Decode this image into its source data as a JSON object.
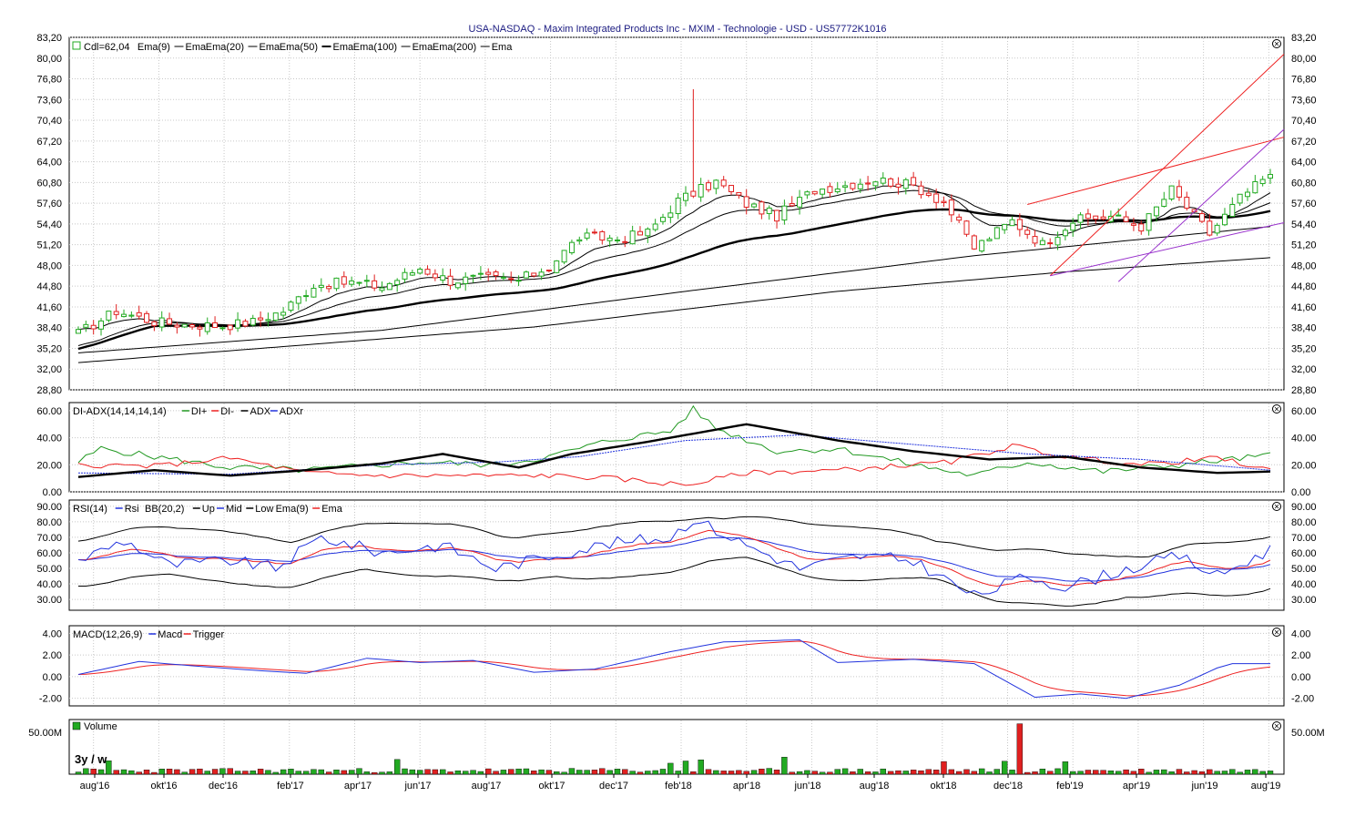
{
  "title": "USA-NASDAQ - Maxim Integrated Products Inc - MXIM - Technologie - USD - US57772K1016",
  "colors": {
    "up": "#22aa22",
    "down": "#e02020",
    "black": "#000000",
    "blue": "#2233dd",
    "red": "#ee2222",
    "green": "#229922",
    "purple": "#9933cc",
    "grid": "#c8c8c8"
  },
  "panels": {
    "price": {
      "legend": [
        "Cdl=62,04",
        "Ema(9)",
        "Ema",
        "Ema(20)",
        "Ema",
        "Ema(50)",
        "Ema",
        "Ema(100)",
        "Ema",
        "Ema(200)",
        "Ema"
      ],
      "yticks": [
        "83,20",
        "80,00",
        "76,80",
        "73,60",
        "70,40",
        "67,20",
        "64,00",
        "60,80",
        "57,60",
        "54,40",
        "51,20",
        "48,00",
        "44,80",
        "41,60",
        "38,40",
        "35,20",
        "32,00",
        "28,80"
      ],
      "close_label": "62,04"
    },
    "adx": {
      "legend": [
        "DI-ADX(14,14,14,14)",
        "DI+",
        "DI-",
        "ADX",
        "ADXr"
      ],
      "yticks": [
        "60.00",
        "40.00",
        "20.00",
        "0.00"
      ]
    },
    "rsi": {
      "legend": [
        "RSI(14)",
        "Rsi",
        "BB(20,2)",
        "Up",
        "Mid",
        "Low",
        "Ema(9)",
        "Ema"
      ],
      "yticks": [
        "90.00",
        "80.00",
        "70.00",
        "60.00",
        "50.00",
        "40.00",
        "30.00"
      ]
    },
    "macd": {
      "legend": [
        "MACD(12,26,9)",
        "Macd",
        "Trigger"
      ],
      "yticks": [
        "4.00",
        "2.00",
        "0.00",
        "-2.00"
      ]
    },
    "volume": {
      "legend": [
        "Volume"
      ],
      "yticks": [
        "50.00M"
      ],
      "period": "3y / w"
    }
  },
  "x_labels": [
    "aug'16",
    "okt'16",
    "dec'16",
    "feb'17",
    "apr'17",
    "jun'17",
    "aug'17",
    "okt'17",
    "dec'17",
    "feb'18",
    "apr'18",
    "jun'18",
    "aug'18",
    "okt'18",
    "dec'18",
    "feb'19",
    "apr'19",
    "jun'19",
    "aug'19"
  ],
  "chart_data": {
    "type": "candlestick",
    "instrument": "Maxim Integrated Products Inc (MXIM)",
    "interval": "weekly",
    "last_close": 62.04,
    "price_axis": [
      28.8,
      83.2
    ],
    "close_points": [
      {
        "x": "2016-07-22",
        "y": 37.5
      },
      {
        "x": "2016-08-26",
        "y": 41.0
      },
      {
        "x": "2016-09-30",
        "y": 39.3
      },
      {
        "x": "2016-10-28",
        "y": 38.9
      },
      {
        "x": "2016-12-02",
        "y": 38.7
      },
      {
        "x": "2016-12-30",
        "y": 39.3
      },
      {
        "x": "2017-01-27",
        "y": 41.0
      },
      {
        "x": "2017-02-24",
        "y": 45.0
      },
      {
        "x": "2017-03-31",
        "y": 45.4
      },
      {
        "x": "2017-04-28",
        "y": 44.7
      },
      {
        "x": "2017-06-02",
        "y": 47.6
      },
      {
        "x": "2017-06-30",
        "y": 45.6
      },
      {
        "x": "2017-07-28",
        "y": 46.1
      },
      {
        "x": "2017-09-01",
        "y": 45.7
      },
      {
        "x": "2017-09-29",
        "y": 47.8
      },
      {
        "x": "2017-10-27",
        "y": 52.4
      },
      {
        "x": "2017-12-01",
        "y": 52.1
      },
      {
        "x": "2017-12-29",
        "y": 53.1
      },
      {
        "x": "2018-01-26",
        "y": 58.0
      },
      {
        "x": "2018-03-02",
        "y": 60.9
      },
      {
        "x": "2018-03-30",
        "y": 57.5
      },
      {
        "x": "2018-04-27",
        "y": 55.6
      },
      {
        "x": "2018-06-01",
        "y": 59.7
      },
      {
        "x": "2018-06-29",
        "y": 60.4
      },
      {
        "x": "2018-07-27",
        "y": 61.3
      },
      {
        "x": "2018-08-31",
        "y": 60.3
      },
      {
        "x": "2018-09-28",
        "y": 57.8
      },
      {
        "x": "2018-10-26",
        "y": 50.7
      },
      {
        "x": "2018-11-30",
        "y": 54.9
      },
      {
        "x": "2018-12-28",
        "y": 51.3
      },
      {
        "x": "2019-01-25",
        "y": 54.9
      },
      {
        "x": "2019-03-01",
        "y": 55.6
      },
      {
        "x": "2019-03-29",
        "y": 54.0
      },
      {
        "x": "2019-04-26",
        "y": 59.7
      },
      {
        "x": "2019-05-31",
        "y": 52.9
      },
      {
        "x": "2019-06-28",
        "y": 58.4
      },
      {
        "x": "2019-07-19",
        "y": 62.04
      }
    ],
    "ema_200_endpoints": [
      {
        "x": "2016-07-22",
        "y": 33.0
      },
      {
        "x": "2019-07-19",
        "y": 49.2
      }
    ],
    "ema_100_endpoints": [
      {
        "x": "2016-07-22",
        "y": 34.5
      },
      {
        "x": "2019-07-19",
        "y": 54.0
      }
    ],
    "adx_series": {
      "di_plus": [
        {
          "x": "2016-08-05",
          "y": 32
        },
        {
          "x": "2017-06-02",
          "y": 22
        },
        {
          "x": "2018-02-09",
          "y": 61
        },
        {
          "x": "2018-09-28",
          "y": 12
        },
        {
          "x": "2019-07-19",
          "y": 27
        }
      ],
      "di_minus": [
        {
          "x": "2016-08-05",
          "y": 20
        },
        {
          "x": "2017-06-02",
          "y": 9
        },
        {
          "x": "2018-02-09",
          "y": 5
        },
        {
          "x": "2018-11-23",
          "y": 34
        },
        {
          "x": "2019-07-19",
          "y": 16
        }
      ],
      "adx": [
        {
          "x": "2016-08-05",
          "y": 11
        },
        {
          "x": "2017-06-02",
          "y": 28
        },
        {
          "x": "2018-03-16",
          "y": 50
        },
        {
          "x": "2018-10-26",
          "y": 24
        },
        {
          "x": "2019-07-19",
          "y": 15
        }
      ]
    },
    "rsi_range": [
      30,
      90
    ],
    "macd_range": [
      -2,
      4
    ],
    "volume_peak": {
      "x": "2018-11-23",
      "y": 60000000
    }
  }
}
